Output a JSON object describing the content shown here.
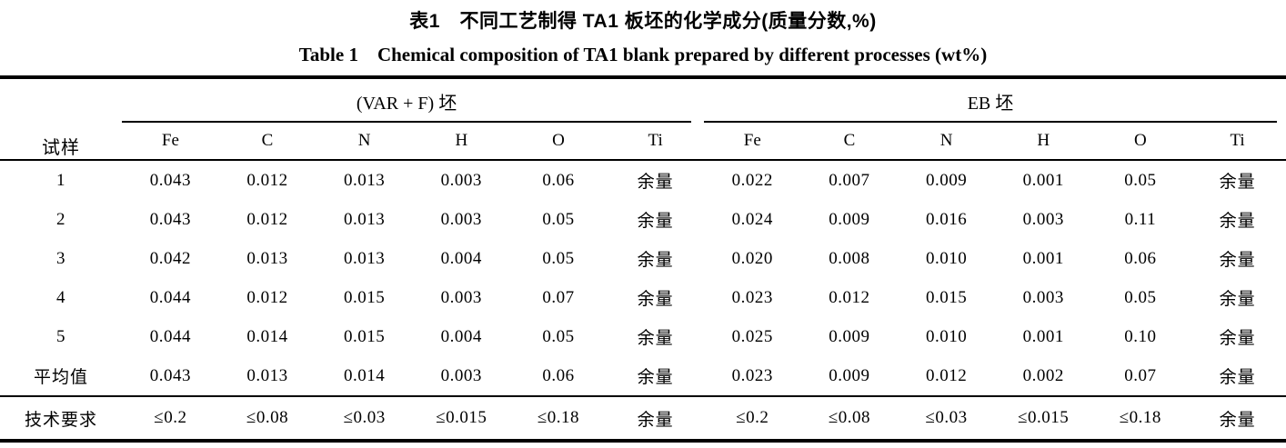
{
  "captions": {
    "zh": "表1　不同工艺制得 TA1 板坯的化学成分(质量分数,%)",
    "en": "Table 1　Chemical composition of TA1 blank prepared by different processes (wt%)"
  },
  "table": {
    "corner_header": "试样",
    "groups": [
      {
        "label": "(VAR + F) 坯",
        "columns": [
          "Fe",
          "C",
          "N",
          "H",
          "O",
          "Ti"
        ]
      },
      {
        "label": "EB 坯",
        "columns": [
          "Fe",
          "C",
          "N",
          "H",
          "O",
          "Ti"
        ]
      }
    ],
    "rows": [
      {
        "cells": [
          "1",
          "0.043",
          "0.012",
          "0.013",
          "0.003",
          "0.06",
          "余量",
          "0.022",
          "0.007",
          "0.009",
          "0.001",
          "0.05",
          "余量"
        ]
      },
      {
        "cells": [
          "2",
          "0.043",
          "0.012",
          "0.013",
          "0.003",
          "0.05",
          "余量",
          "0.024",
          "0.009",
          "0.016",
          "0.003",
          "0.11",
          "余量"
        ]
      },
      {
        "cells": [
          "3",
          "0.042",
          "0.013",
          "0.013",
          "0.004",
          "0.05",
          "余量",
          "0.020",
          "0.008",
          "0.010",
          "0.001",
          "0.06",
          "余量"
        ]
      },
      {
        "cells": [
          "4",
          "0.044",
          "0.012",
          "0.015",
          "0.003",
          "0.07",
          "余量",
          "0.023",
          "0.012",
          "0.015",
          "0.003",
          "0.05",
          "余量"
        ]
      },
      {
        "cells": [
          "5",
          "0.044",
          "0.014",
          "0.015",
          "0.004",
          "0.05",
          "余量",
          "0.025",
          "0.009",
          "0.010",
          "0.001",
          "0.10",
          "余量"
        ]
      },
      {
        "cells": [
          "平均值",
          "0.043",
          "0.013",
          "0.014",
          "0.003",
          "0.06",
          "余量",
          "0.023",
          "0.009",
          "0.012",
          "0.002",
          "0.07",
          "余量"
        ]
      },
      {
        "cells": [
          "技术要求",
          "≤0.2",
          "≤0.08",
          "≤0.03",
          "≤0.015",
          "≤0.18",
          "余量",
          "≤0.2",
          "≤0.08",
          "≤0.03",
          "≤0.015",
          "≤0.18",
          "余量"
        ]
      }
    ]
  }
}
